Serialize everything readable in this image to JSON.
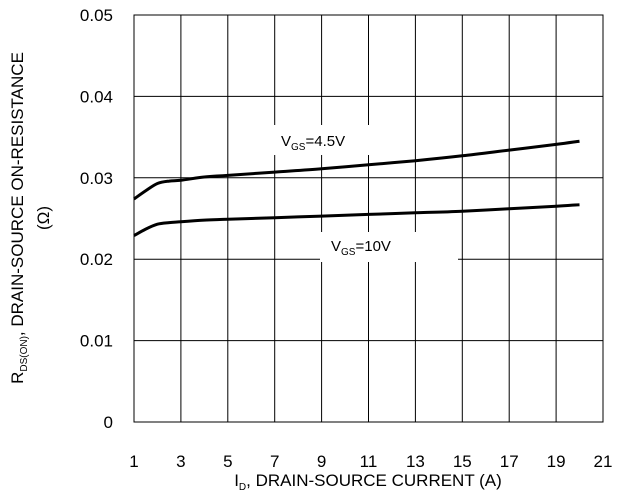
{
  "chart_data": {
    "type": "line",
    "xlabel_main": "I",
    "xlabel_sub": "D",
    "xlabel_rest": ", DRAIN-SOURCE CURRENT (A)",
    "ylabel_main": "R",
    "ylabel_sub": "DS(ON)",
    "ylabel_rest": ", DRAIN-SOURCE ON-RESISTANCE",
    "ylabel_unit": "(Ω)",
    "xlim": [
      1,
      21
    ],
    "ylim": [
      0,
      0.05
    ],
    "x_ticks": [
      "1",
      "3",
      "5",
      "7",
      "9",
      "11",
      "13",
      "15",
      "17",
      "19",
      "21"
    ],
    "y_ticks": [
      "0",
      "0.01",
      "0.02",
      "0.03",
      "0.04",
      "0.05"
    ],
    "grid": true,
    "series": [
      {
        "name_main": "V",
        "name_sub": "GS",
        "name_rest": "=4.5V",
        "x": [
          1,
          1.5,
          2,
          2.5,
          3,
          4,
          5,
          7,
          9,
          11,
          13,
          15,
          17,
          19,
          20
        ],
        "y": [
          0.0274,
          0.0284,
          0.0293,
          0.0296,
          0.0297,
          0.0301,
          0.0303,
          0.0307,
          0.0311,
          0.0316,
          0.0321,
          0.0327,
          0.0334,
          0.0341,
          0.0345
        ]
      },
      {
        "name_main": "V",
        "name_sub": "GS",
        "name_rest": "=10V",
        "x": [
          1,
          1.5,
          2,
          2.5,
          3,
          4,
          5,
          7,
          9,
          11,
          13,
          15,
          17,
          19,
          20
        ],
        "y": [
          0.0229,
          0.0237,
          0.0243,
          0.0245,
          0.0246,
          0.0248,
          0.0249,
          0.0251,
          0.0253,
          0.0255,
          0.0257,
          0.0259,
          0.0262,
          0.0265,
          0.0267
        ]
      }
    ]
  }
}
